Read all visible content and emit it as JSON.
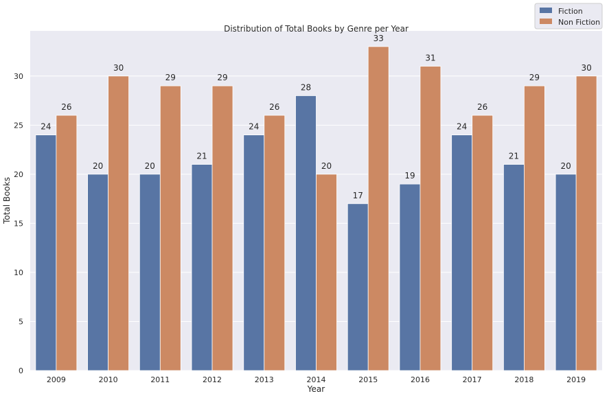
{
  "chart_data": {
    "type": "bar",
    "title": "Distribution of Total Books by Genre per Year",
    "xlabel": "Year",
    "ylabel": "Total Books",
    "categories": [
      "2009",
      "2010",
      "2011",
      "2012",
      "2013",
      "2014",
      "2015",
      "2016",
      "2017",
      "2018",
      "2019"
    ],
    "series": [
      {
        "name": "Fiction",
        "color": "#5875a4",
        "values": [
          24,
          20,
          20,
          21,
          24,
          28,
          17,
          19,
          24,
          21,
          20
        ]
      },
      {
        "name": "Non Fiction",
        "color": "#cc8963",
        "values": [
          26,
          30,
          29,
          29,
          26,
          20,
          33,
          31,
          26,
          29,
          30
        ]
      }
    ],
    "ylim": [
      0,
      34.6
    ],
    "yticks": [
      0,
      5,
      10,
      15,
      20,
      25,
      30
    ],
    "grid": true,
    "legend_position": "top-right",
    "background": "#eaeaf2"
  }
}
